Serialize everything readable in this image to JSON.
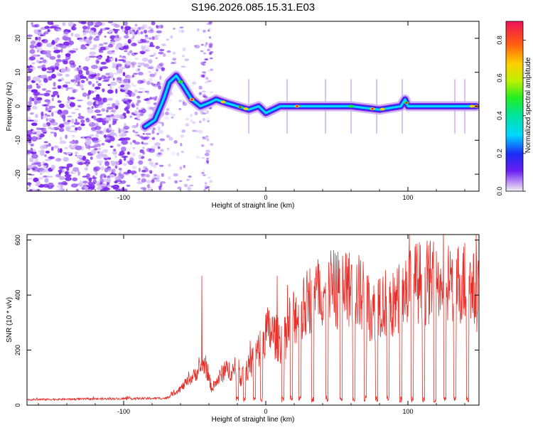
{
  "figure_title": "S196.2026.085.15.31.E03",
  "colors": {
    "snr_line": "#e8302a",
    "spectrogram_noise": "#8b3cf2",
    "axis": "#000000"
  },
  "chart_data": [
    {
      "type": "heatmap",
      "name": "spectrogram",
      "xlabel": "Height of straight line (km)",
      "ylabel": "Frequency (Hz)",
      "xlim": [
        -168,
        150
      ],
      "ylim": [
        -25,
        25
      ],
      "x_ticks": [
        -100,
        0,
        100
      ],
      "x_tick_labels": [
        "-100",
        "0",
        "100"
      ],
      "y_ticks": [
        -20,
        -10,
        0,
        10,
        20
      ],
      "y_tick_labels": [
        "-20",
        "-10",
        "0",
        "10",
        "20"
      ],
      "ridge": {
        "x": [
          -85,
          -78,
          -72,
          -68,
          -63,
          -58,
          -52,
          -46,
          -40,
          -35,
          -28,
          -20,
          -12,
          -5,
          0,
          5,
          10,
          20,
          40,
          60,
          80,
          95,
          98,
          100,
          110,
          130,
          148
        ],
        "y": [
          -6,
          -4,
          2,
          7,
          9,
          6,
          2,
          0,
          1,
          2,
          1,
          0,
          -1,
          0,
          -2,
          -1,
          0,
          0,
          0,
          0,
          -1,
          0,
          2,
          0,
          0,
          0,
          0
        ]
      },
      "colorbar": {
        "label": "Normalized spectral amplitude",
        "range": [
          0.0,
          0.9
        ],
        "ticks": [
          0.0,
          0.2,
          0.4,
          0.6,
          0.8
        ],
        "tick_labels": [
          "0.0",
          "0.2",
          "0.4",
          "0.6",
          "0.8"
        ]
      }
    },
    {
      "type": "line",
      "name": "snr",
      "xlabel": "Height of straight line (km)",
      "ylabel": "SNR (10 * v/v)",
      "xlim": [
        -168,
        150
      ],
      "ylim": [
        0,
        620
      ],
      "x_ticks": [
        -100,
        0,
        100
      ],
      "x_tick_labels": [
        "-100",
        "0",
        "100"
      ],
      "y_ticks": [
        0,
        200,
        400,
        600
      ],
      "y_tick_labels": [
        "0",
        "200",
        "400",
        "600"
      ],
      "envelope": {
        "x": [
          -168,
          -70,
          -60,
          -50,
          -43,
          -38,
          -30,
          -24,
          -18,
          -10,
          -5,
          0,
          5,
          10,
          15,
          20,
          25,
          30,
          40,
          50,
          60,
          70,
          75,
          80,
          90,
          100,
          110,
          120,
          130,
          140,
          150
        ],
        "y": [
          20,
          25,
          60,
          110,
          150,
          60,
          120,
          130,
          100,
          150,
          200,
          270,
          260,
          230,
          260,
          330,
          330,
          380,
          420,
          420,
          420,
          400,
          330,
          380,
          360,
          430,
          450,
          440,
          450,
          440,
          400
        ]
      },
      "dropouts_x": [
        -20,
        -15,
        -8,
        -3,
        12,
        18,
        24,
        33,
        43,
        53,
        62,
        70,
        78,
        86,
        95,
        103,
        111,
        119,
        126,
        133,
        142
      ],
      "peaks": [
        {
          "x": -45,
          "y": 470
        },
        {
          "x": 101,
          "y": 620
        },
        {
          "x": 8,
          "y": 470
        },
        {
          "x": 120,
          "y": 560
        },
        {
          "x": 140,
          "y": 590
        }
      ]
    }
  ]
}
